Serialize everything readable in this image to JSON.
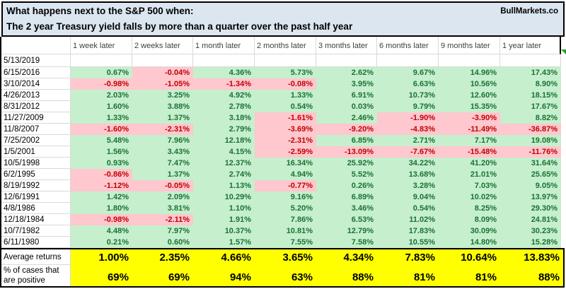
{
  "banner": {
    "title_line1": "What happens next to the S&P 500 when:",
    "title_line2": "The 2 year Treasury yield falls by more than a quarter over the past half year",
    "brand": "BullMarkets.co"
  },
  "chart_data": {
    "type": "table",
    "title": "What happens next to the S&P 500 when: The 2 year Treasury yield falls by more than a quarter over the past half year",
    "columns": [
      "1 week later",
      "2 weeks later",
      "1 month later",
      "2 months later",
      "3 months later",
      "6 months later",
      "9 months later",
      "1 year later"
    ],
    "rows": [
      {
        "date": "5/13/2019",
        "values": [
          "",
          "",
          "",
          "",
          "",
          "",
          "",
          ""
        ]
      },
      {
        "date": "6/15/2016",
        "values": [
          "0.67%",
          "-0.04%",
          "4.36%",
          "5.73%",
          "2.62%",
          "9.67%",
          "14.96%",
          "17.43%"
        ]
      },
      {
        "date": "3/10/2014",
        "values": [
          "-0.98%",
          "-1.05%",
          "-1.34%",
          "-0.08%",
          "3.95%",
          "6.63%",
          "10.56%",
          "8.90%"
        ]
      },
      {
        "date": "4/26/2013",
        "values": [
          "2.03%",
          "3.25%",
          "4.92%",
          "1.33%",
          "6.91%",
          "10.73%",
          "12.60%",
          "18.15%"
        ]
      },
      {
        "date": "8/31/2012",
        "values": [
          "1.60%",
          "3.88%",
          "2.78%",
          "0.54%",
          "0.03%",
          "9.79%",
          "15.35%",
          "17.67%"
        ]
      },
      {
        "date": "11/27/2009",
        "values": [
          "1.33%",
          "1.37%",
          "3.18%",
          "-1.61%",
          "2.46%",
          "-1.90%",
          "-3.90%",
          "8.82%"
        ]
      },
      {
        "date": "11/8/2007",
        "values": [
          "-1.60%",
          "-2.31%",
          "2.79%",
          "-3.69%",
          "-9.20%",
          "-4.83%",
          "-11.49%",
          "-36.87%"
        ]
      },
      {
        "date": "7/25/2002",
        "values": [
          "5.48%",
          "7.96%",
          "12.18%",
          "-2.31%",
          "6.85%",
          "2.71%",
          "7.17%",
          "19.08%"
        ]
      },
      {
        "date": "1/5/2001",
        "values": [
          "1.56%",
          "3.43%",
          "4.15%",
          "-2.59%",
          "-13.09%",
          "-7.67%",
          "-15.48%",
          "-11.76%"
        ]
      },
      {
        "date": "10/5/1998",
        "values": [
          "0.93%",
          "7.47%",
          "12.37%",
          "16.34%",
          "25.92%",
          "34.22%",
          "41.20%",
          "31.64%"
        ]
      },
      {
        "date": "6/2/1995",
        "values": [
          "-0.86%",
          "1.37%",
          "2.74%",
          "4.94%",
          "5.52%",
          "13.68%",
          "21.01%",
          "25.65%"
        ]
      },
      {
        "date": "8/19/1992",
        "values": [
          "-1.12%",
          "-0.05%",
          "1.13%",
          "-0.77%",
          "0.26%",
          "3.28%",
          "7.03%",
          "9.05%"
        ]
      },
      {
        "date": "12/6/1991",
        "values": [
          "1.42%",
          "2.09%",
          "10.29%",
          "9.16%",
          "6.89%",
          "9.04%",
          "10.02%",
          "13.97%"
        ]
      },
      {
        "date": "4/8/1986",
        "values": [
          "1.80%",
          "3.81%",
          "1.10%",
          "5.20%",
          "3.46%",
          "0.54%",
          "8.25%",
          "29.30%"
        ]
      },
      {
        "date": "12/18/1984",
        "values": [
          "-0.98%",
          "-2.11%",
          "1.91%",
          "7.86%",
          "6.53%",
          "11.02%",
          "8.09%",
          "24.81%"
        ]
      },
      {
        "date": "10/7/1982",
        "values": [
          "4.48%",
          "7.97%",
          "10.37%",
          "10.81%",
          "12.79%",
          "17.83%",
          "30.09%",
          "30.23%"
        ]
      },
      {
        "date": "6/11/1980",
        "values": [
          "0.21%",
          "0.60%",
          "1.57%",
          "7.55%",
          "7.58%",
          "10.55%",
          "14.80%",
          "15.28%"
        ]
      }
    ],
    "summary": {
      "average_label": "Average returns",
      "average_values": [
        "1.00%",
        "2.35%",
        "4.66%",
        "3.65%",
        "4.34%",
        "7.83%",
        "10.64%",
        "13.83%"
      ],
      "percent_positive_label": [
        "% of cases that",
        "are positive"
      ],
      "percent_positive_values": [
        "69%",
        "69%",
        "94%",
        "63%",
        "88%",
        "81%",
        "81%",
        "88%"
      ]
    }
  },
  "colors": {
    "positive_bg": "#c6efce",
    "positive_text": "#1a7233",
    "negative_bg": "#ffc7ce",
    "negative_text": "#c00000",
    "summary_bg": "#ffff00",
    "banner_bg": "#dce6f1",
    "gridline": "#d9d9d9",
    "border": "#000000",
    "corner_marker": "#1fa41f"
  }
}
